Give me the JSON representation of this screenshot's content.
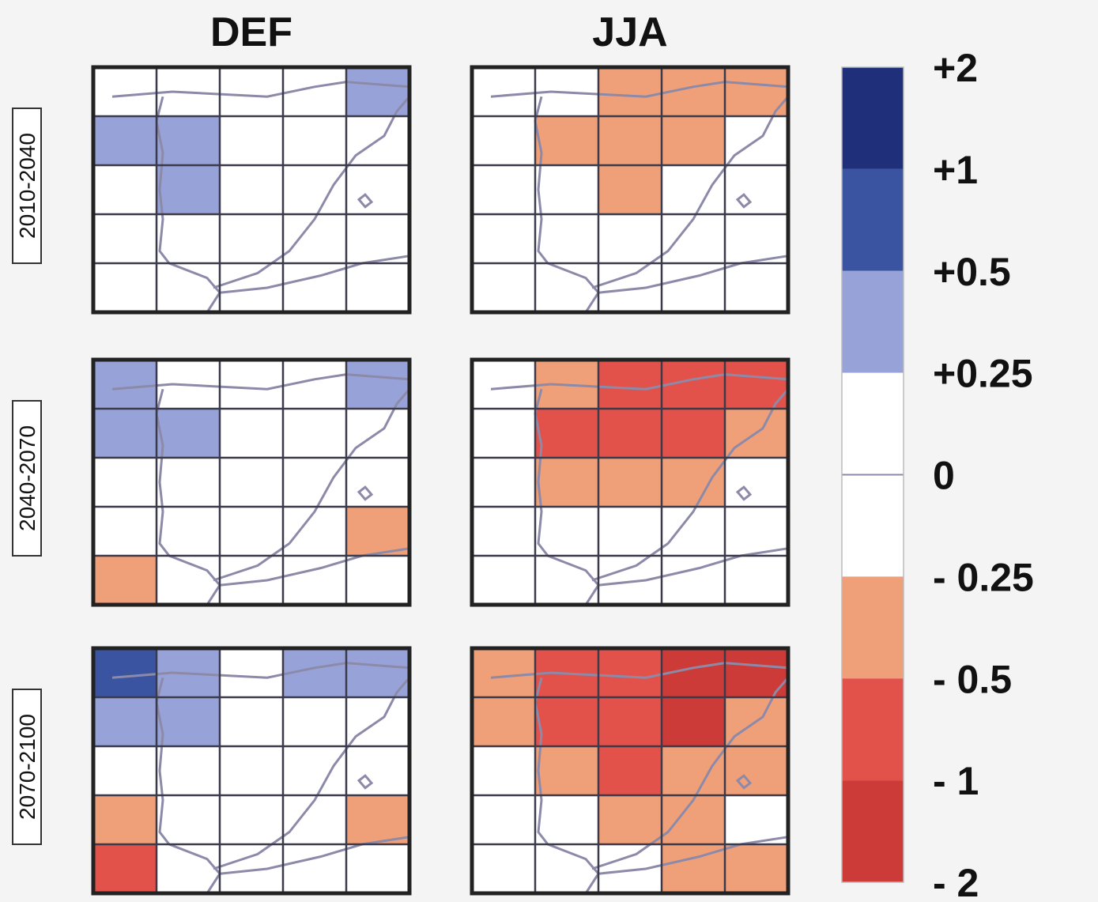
{
  "chart_data": {
    "type": "heatmap",
    "columns": [
      "DEF",
      "JJA"
    ],
    "rows": [
      "2010-2040",
      "2040-2070",
      "2070-2100"
    ],
    "grid_size": [
      5,
      5
    ],
    "colorbar": {
      "ticks": [
        "+2",
        "+1",
        "+0.5",
        "+0.25",
        "0",
        "- 0.25",
        "- 0.5",
        "- 1",
        "- 2"
      ],
      "bins": [
        {
          "from": 1,
          "to": 2,
          "color": "#1f2f7a"
        },
        {
          "from": 0.5,
          "to": 1,
          "color": "#3a54a2"
        },
        {
          "from": 0.25,
          "to": 0.5,
          "color": "#97a3d8"
        },
        {
          "from": -0.25,
          "to": 0.25,
          "color": "#ffffff"
        },
        {
          "from": -0.5,
          "to": -0.25,
          "color": "#f0a079"
        },
        {
          "from": -1,
          "to": -0.5,
          "color": "#e2524a"
        },
        {
          "from": -2,
          "to": -1,
          "color": "#cc3b37"
        }
      ]
    },
    "panels": [
      {
        "row": "2010-2040",
        "column": "DEF",
        "classes": [
          [
            0,
            0,
            0,
            0,
            1
          ],
          [
            1,
            1,
            0,
            0,
            0
          ],
          [
            0,
            1,
            0,
            0,
            0
          ],
          [
            0,
            0,
            0,
            0,
            0
          ],
          [
            0,
            0,
            0,
            0,
            0
          ]
        ]
      },
      {
        "row": "2010-2040",
        "column": "JJA",
        "classes": [
          [
            0,
            0,
            -1,
            -1,
            -1
          ],
          [
            0,
            -1,
            -1,
            -1,
            0
          ],
          [
            0,
            0,
            -1,
            0,
            0
          ],
          [
            0,
            0,
            0,
            0,
            0
          ],
          [
            0,
            0,
            0,
            0,
            0
          ]
        ]
      },
      {
        "row": "2040-2070",
        "column": "DEF",
        "classes": [
          [
            1,
            0,
            0,
            0,
            1
          ],
          [
            1,
            1,
            0,
            0,
            0
          ],
          [
            0,
            0,
            0,
            0,
            0
          ],
          [
            0,
            0,
            0,
            0,
            -1
          ],
          [
            -1,
            0,
            0,
            0,
            0
          ]
        ]
      },
      {
        "row": "2040-2070",
        "column": "JJA",
        "classes": [
          [
            0,
            -1,
            -2,
            -2,
            -2
          ],
          [
            0,
            -2,
            -2,
            -2,
            -1
          ],
          [
            0,
            -1,
            -1,
            -1,
            0
          ],
          [
            0,
            0,
            0,
            0,
            0
          ],
          [
            0,
            0,
            0,
            0,
            0
          ]
        ]
      },
      {
        "row": "2070-2100",
        "column": "DEF",
        "classes": [
          [
            2,
            1,
            0,
            1,
            1
          ],
          [
            1,
            1,
            0,
            0,
            0
          ],
          [
            0,
            0,
            0,
            0,
            0
          ],
          [
            -1,
            0,
            0,
            0,
            -1
          ],
          [
            -2,
            0,
            0,
            0,
            0
          ]
        ]
      },
      {
        "row": "2070-2100",
        "column": "JJA",
        "classes": [
          [
            -1,
            -2,
            -2,
            -3,
            -3
          ],
          [
            -1,
            -2,
            -2,
            -3,
            -1
          ],
          [
            0,
            -1,
            -2,
            -1,
            -1
          ],
          [
            0,
            0,
            -1,
            -1,
            0
          ],
          [
            0,
            0,
            0,
            -1,
            -1
          ]
        ]
      }
    ]
  }
}
